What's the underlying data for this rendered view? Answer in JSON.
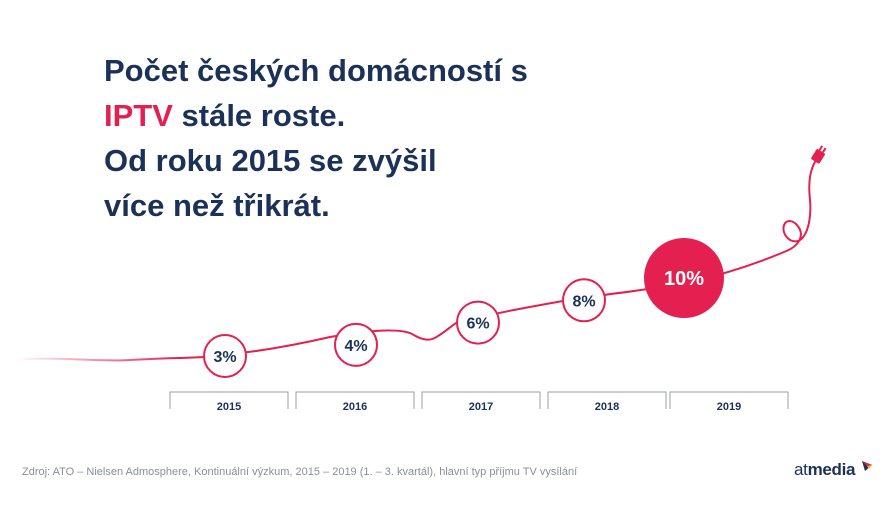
{
  "headline": {
    "line1": "Počet českých domácností s",
    "line2_accent": "IPTV",
    "line2_rest": " stále roste.",
    "line3": "Od roku 2015 se zvýšil",
    "line4": "více než třikrát."
  },
  "chart_data": {
    "type": "line",
    "title": "",
    "xlabel": "",
    "ylabel": "",
    "categories": [
      "2015",
      "2016",
      "2017",
      "2018",
      "2019"
    ],
    "series": [
      {
        "values": [
          3,
          4,
          6,
          8,
          10
        ]
      }
    ],
    "data_labels": [
      "3%",
      "4%",
      "6%",
      "8%",
      "10%"
    ],
    "unit": "%",
    "highlight_category": "2019",
    "grid": false,
    "legend": "none"
  },
  "footer": {
    "source": "Zdroj: ATO – Nielsen Admosphere, Kontinuální výzkum, 2015 – 2019 (1. – 3. kvartál), hlavní typ příjmu TV vysílání"
  },
  "logo": {
    "prefix": "at",
    "suffix": "media"
  },
  "colors": {
    "navy": "#1c3157",
    "accent": "#e3204f",
    "axis": "#9aa0aa",
    "footer": "#8a8f99"
  },
  "icons": [
    "cable-plug-icon",
    "atmedia-logo-icon"
  ]
}
